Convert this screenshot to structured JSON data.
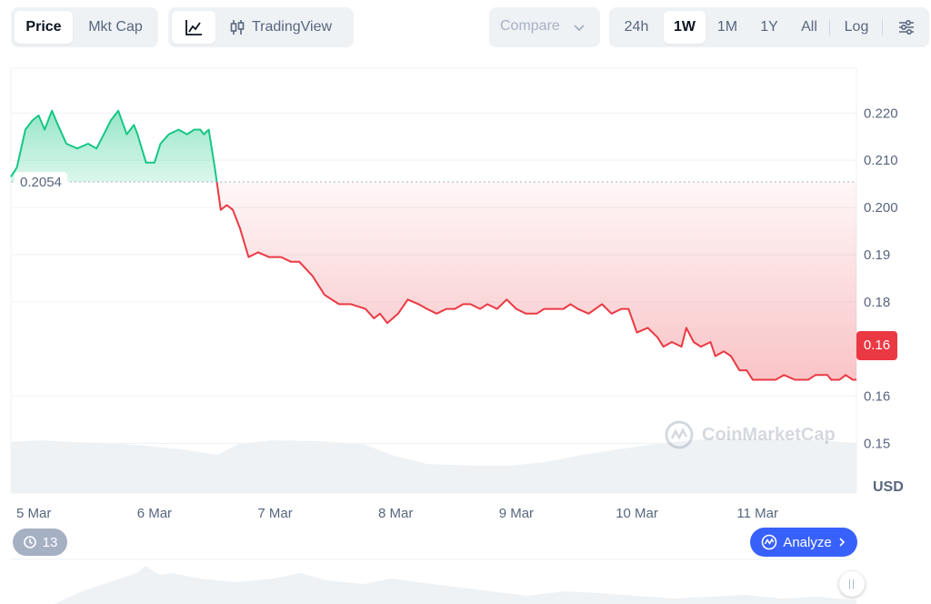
{
  "toolbar": {
    "tab_price": "Price",
    "tab_mktcap": "Mkt Cap",
    "tradingview_label": "TradingView",
    "compare_label": "Compare",
    "ranges": [
      "24h",
      "1W",
      "1M",
      "1Y",
      "All"
    ],
    "active_range": "1W",
    "log_label": "Log"
  },
  "chart": {
    "open_price_label": "0.2054",
    "current_price_label": "0.16",
    "currency_label": "USD",
    "watermark": "CoinMarketCap",
    "history_count": "13",
    "analyze_label": "Analyze",
    "up_color": "#16c784",
    "down_color": "#ea3943"
  },
  "chart_data": {
    "type": "area",
    "title": "",
    "xlabel": "",
    "ylabel": "USD",
    "baseline": 0.2054,
    "ylim": [
      0.1395,
      0.2295
    ],
    "xlim": [
      4.81,
      11.82
    ],
    "y_ticks": [
      0.22,
      0.21,
      0.2,
      0.19,
      0.18,
      0.16,
      0.15
    ],
    "y_tick_labels": [
      "0.220",
      "0.210",
      "0.200",
      "0.19",
      "0.18",
      "0.16",
      "0.15"
    ],
    "x_ticks": [
      5,
      6,
      7,
      8,
      9,
      10,
      11
    ],
    "x_tick_labels": [
      "5 Mar",
      "6 Mar",
      "7 Mar",
      "8 Mar",
      "9 Mar",
      "10 Mar",
      "11 Mar"
    ],
    "x": [
      4.81,
      4.86,
      4.93,
      4.99,
      5.04,
      5.09,
      5.15,
      5.2,
      5.27,
      5.36,
      5.45,
      5.52,
      5.58,
      5.64,
      5.7,
      5.77,
      5.83,
      5.86,
      5.93,
      6.0,
      6.05,
      6.12,
      6.2,
      6.27,
      6.33,
      6.38,
      6.41,
      6.45,
      6.5,
      6.55,
      6.6,
      6.65,
      6.71,
      6.78,
      6.86,
      6.95,
      7.05,
      7.13,
      7.2,
      7.31,
      7.41,
      7.47,
      7.53,
      7.63,
      7.75,
      7.82,
      7.87,
      7.93,
      8.02,
      8.1,
      8.19,
      8.26,
      8.34,
      8.42,
      8.49,
      8.56,
      8.62,
      8.7,
      8.76,
      8.84,
      8.92,
      9.0,
      9.08,
      9.17,
      9.23,
      9.31,
      9.39,
      9.45,
      9.51,
      9.6,
      9.71,
      9.79,
      9.87,
      9.93,
      10.0,
      10.09,
      10.17,
      10.22,
      10.29,
      10.37,
      10.41,
      10.47,
      10.53,
      10.61,
      10.65,
      10.72,
      10.78,
      10.85,
      10.91,
      10.96,
      11.03,
      11.09,
      11.15,
      11.22,
      11.31,
      11.38,
      11.42,
      11.48,
      11.53,
      11.58,
      11.61,
      11.68,
      11.73,
      11.79,
      11.82
    ],
    "values": [
      0.2065,
      0.2085,
      0.2165,
      0.2185,
      0.2195,
      0.2165,
      0.2205,
      0.2175,
      0.2135,
      0.2125,
      0.2135,
      0.2125,
      0.2155,
      0.2185,
      0.2205,
      0.2155,
      0.2175,
      0.2155,
      0.2095,
      0.2095,
      0.2135,
      0.2155,
      0.2165,
      0.2155,
      0.2165,
      0.2165,
      0.2155,
      0.2165,
      0.2085,
      0.1995,
      0.2005,
      0.1995,
      0.1955,
      0.1895,
      0.1905,
      0.1895,
      0.1895,
      0.1885,
      0.1885,
      0.1855,
      0.1815,
      0.1805,
      0.1795,
      0.1795,
      0.1785,
      0.1765,
      0.1775,
      0.1755,
      0.1775,
      0.1805,
      0.1795,
      0.1785,
      0.1775,
      0.1785,
      0.1785,
      0.1795,
      0.1795,
      0.1785,
      0.1795,
      0.1785,
      0.1805,
      0.1785,
      0.1775,
      0.1775,
      0.1785,
      0.1785,
      0.1785,
      0.1795,
      0.1785,
      0.1775,
      0.1795,
      0.1775,
      0.1785,
      0.1785,
      0.1735,
      0.1745,
      0.1725,
      0.1705,
      0.1715,
      0.1705,
      0.1745,
      0.1715,
      0.1705,
      0.1715,
      0.1685,
      0.1695,
      0.1685,
      0.1655,
      0.1655,
      0.1635,
      0.1635,
      0.1635,
      0.1635,
      0.1645,
      0.1635,
      0.1635,
      0.1635,
      0.1645,
      0.1645,
      0.1645,
      0.1635,
      0.1635,
      0.1645,
      0.1635,
      0.1635
    ],
    "grid": true,
    "legend": "none"
  }
}
